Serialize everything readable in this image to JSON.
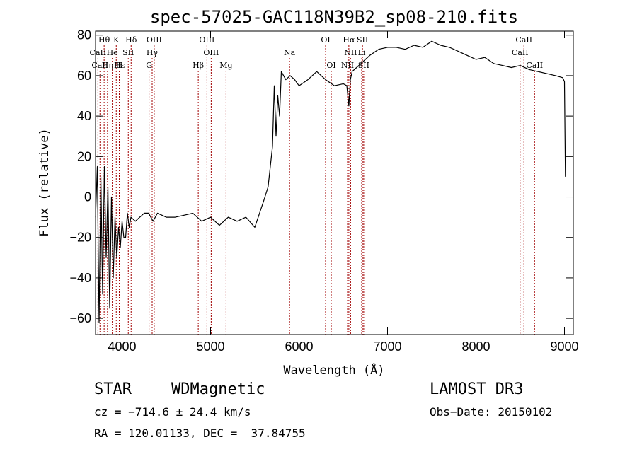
{
  "chart_data": {
    "type": "line",
    "title": "spec-57025-GAC118N39B2_sp08-210.fits",
    "xlabel": "Wavelength (Å)",
    "ylabel": "Flux (relative)",
    "xlim": [
      3700,
      9100
    ],
    "ylim": [
      -68,
      82
    ],
    "xticks": [
      4000,
      5000,
      6000,
      7000,
      8000,
      9000
    ],
    "yticks": [
      -60,
      -40,
      -20,
      0,
      20,
      40,
      60,
      80
    ],
    "grid": false,
    "series": [
      {
        "x": [
          3700,
          3720,
          3740,
          3760,
          3780,
          3800,
          3820,
          3840,
          3860,
          3880,
          3900,
          3920,
          3940,
          3960,
          3980,
          4000,
          4020,
          4040,
          4060,
          4080,
          4100,
          4150,
          4200,
          4250,
          4300,
          4350,
          4400,
          4500,
          4600,
          4700,
          4800,
          4900,
          5000,
          5100,
          5200,
          5300,
          5400,
          5500,
          5600,
          5650,
          5700,
          5720,
          5740,
          5760,
          5780,
          5800,
          5850,
          5900,
          5950,
          6000,
          6100,
          6200,
          6300,
          6400,
          6500,
          6540,
          6563,
          6580,
          6600,
          6650,
          6700,
          6750,
          6800,
          6900,
          7000,
          7100,
          7200,
          7300,
          7400,
          7500,
          7600,
          7700,
          7800,
          7900,
          8000,
          8100,
          8200,
          8300,
          8400,
          8500,
          8600,
          8700,
          8800,
          8900,
          8980,
          9000,
          9010
        ],
        "y": [
          -10,
          15,
          -62,
          10,
          -48,
          15,
          -30,
          5,
          -55,
          0,
          -40,
          -10,
          -30,
          -15,
          -25,
          -12,
          -20,
          -20,
          -8,
          -15,
          -10,
          -12,
          -10,
          -8,
          -8,
          -12,
          -8,
          -10,
          -10,
          -9,
          -8,
          -12,
          -10,
          -14,
          -10,
          -12,
          -10,
          -15,
          -2,
          5,
          25,
          55,
          30,
          50,
          40,
          62,
          58,
          60,
          58,
          55,
          58,
          62,
          58,
          55,
          56,
          55,
          45,
          58,
          62,
          64,
          66,
          68,
          70,
          73,
          74,
          74,
          73,
          75,
          74,
          77,
          75,
          74,
          72,
          70,
          68,
          69,
          66,
          65,
          64,
          65,
          63,
          62,
          61,
          60,
          59,
          57,
          10
        ]
      }
    ],
    "lines": [
      {
        "label": "Hθ",
        "x": 3797,
        "row": 0
      },
      {
        "label": "K",
        "x": 3934,
        "row": 0
      },
      {
        "label": "Hδ",
        "x": 4102,
        "row": 0
      },
      {
        "label": "OIII",
        "x": 4363,
        "row": 0
      },
      {
        "label": "OIII",
        "x": 4959,
        "row": 0
      },
      {
        "label": "OI",
        "x": 6300,
        "row": 0
      },
      {
        "label": "Hα",
        "x": 6563,
        "row": 0
      },
      {
        "label": "SII",
        "x": 6717,
        "row": 0
      },
      {
        "label": "CaII",
        "x": 8542,
        "row": 0
      },
      {
        "label": "CaII",
        "x": 3727,
        "row": 1
      },
      {
        "label": "He",
        "x": 3889,
        "row": 1
      },
      {
        "label": "SII",
        "x": 4070,
        "row": 1
      },
      {
        "label": "Hγ",
        "x": 4340,
        "row": 1
      },
      {
        "label": "OIII",
        "x": 5007,
        "row": 1
      },
      {
        "label": "Na",
        "x": 5893,
        "row": 1
      },
      {
        "label": "NII",
        "x": 6583,
        "row": 1
      },
      {
        "label": "Li",
        "x": 6708,
        "row": 1
      },
      {
        "label": "CaII",
        "x": 8498,
        "row": 1
      },
      {
        "label": "CaII",
        "x": 3750,
        "row": 2
      },
      {
        "label": "Hε",
        "x": 3970,
        "row": 2
      },
      {
        "label": "Hη",
        "x": 3835,
        "row": 2
      },
      {
        "label": "H",
        "x": 3968,
        "row": 2
      },
      {
        "label": "G",
        "x": 4305,
        "row": 2
      },
      {
        "label": "Hβ",
        "x": 4861,
        "row": 2
      },
      {
        "label": "Mg",
        "x": 5175,
        "row": 2
      },
      {
        "label": "OI",
        "x": 6364,
        "row": 2
      },
      {
        "label": "NII",
        "x": 6548,
        "row": 2
      },
      {
        "label": "SII",
        "x": 6731,
        "row": 2
      },
      {
        "label": "CaII",
        "x": 8662,
        "row": 2
      }
    ],
    "line_color": "#a00000"
  },
  "info": {
    "class": "STAR",
    "subclass": "WDMagnetic",
    "survey": "LAMOST DR3",
    "cz": "cz = −714.6 ± 24.4 km/s",
    "obs_date": "Obs−Date: 20150102",
    "coords": "RA = 120.01133, DEC =  37.84755"
  }
}
